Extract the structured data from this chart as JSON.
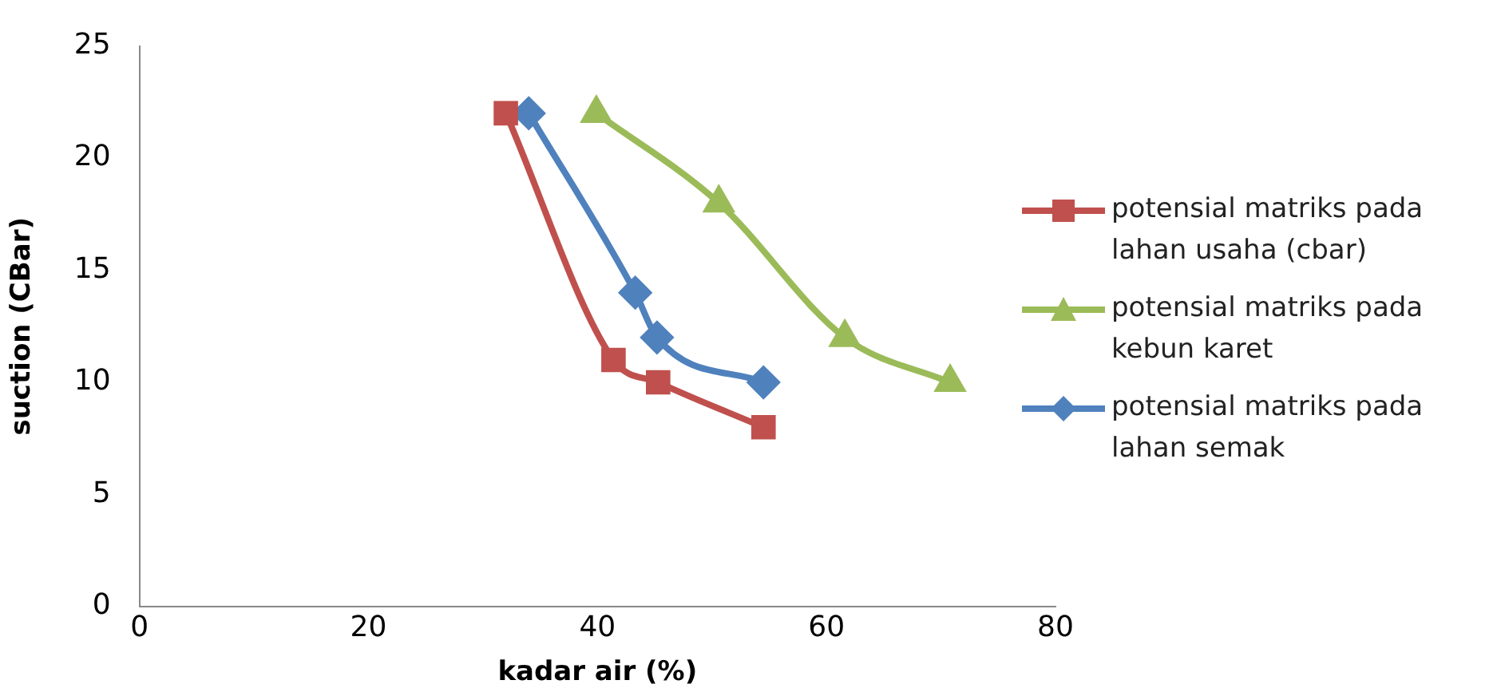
{
  "chart_data": {
    "type": "line",
    "xlabel": "kadar air (%)",
    "ylabel": "suction (CBar)",
    "xlim": [
      0,
      80
    ],
    "xticks": [
      0,
      20,
      40,
      60,
      80
    ],
    "ylim": [
      0,
      25
    ],
    "yticks": [
      0,
      5,
      10,
      15,
      20,
      25
    ],
    "grid": false,
    "legend": "right",
    "line_style": "solid",
    "series": [
      {
        "name": "potensial matriks pada lahan usaha (cbar)",
        "color": "#c0504d",
        "marker": "square",
        "x": [
          32.0,
          41.4,
          45.3,
          54.5
        ],
        "values": [
          22,
          11,
          10,
          8
        ]
      },
      {
        "name": "potensial matriks pada kebun karet",
        "color": "#9bbb59",
        "marker": "triangle",
        "x": [
          39.9,
          50.6,
          61.6,
          70.8
        ],
        "values": [
          22,
          18,
          12,
          10
        ]
      },
      {
        "name": "potensial matriks pada lahan semak",
        "color": "#4f81bd",
        "marker": "diamond",
        "x": [
          34.0,
          43.3,
          45.2,
          54.5
        ],
        "values": [
          22,
          14,
          12,
          10
        ]
      }
    ]
  }
}
